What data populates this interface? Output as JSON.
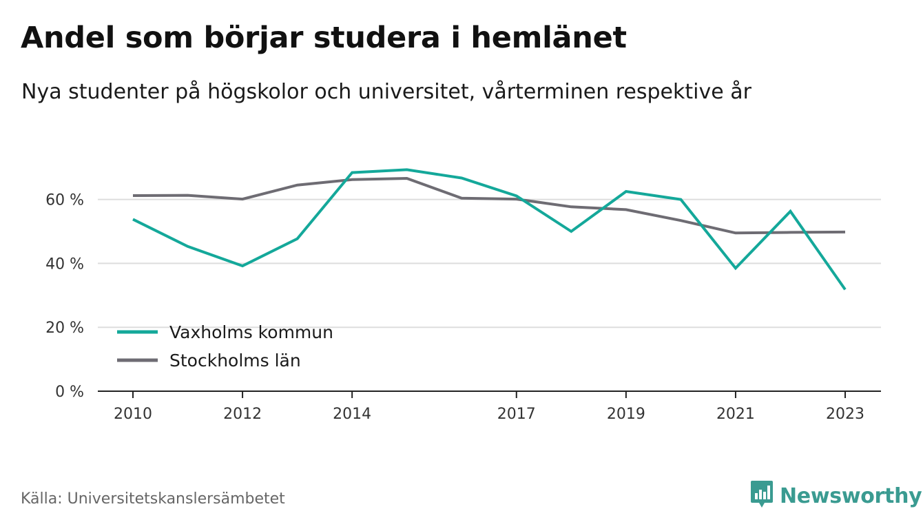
{
  "header": {
    "title": "Andel som börjar studera i hemlänet",
    "subtitle": "Nya studenter på högskolor och universitet, vårterminen respektive år"
  },
  "footer": {
    "source": "Källa: Universitetskanslersämbetet",
    "brand": "Newsworthy",
    "brand_icon": "bar-chart-speech-bubble-icon"
  },
  "colors": {
    "vaxholm": "#14a89a",
    "stockholm": "#6e6c73",
    "grid": "#dddddd",
    "axis": "#222222",
    "brand": "#3a9b91"
  },
  "chart_data": {
    "type": "line",
    "x": [
      2010,
      2011,
      2012,
      2013,
      2014,
      2015,
      2016,
      2017,
      2018,
      2019,
      2020,
      2021,
      2022,
      2023
    ],
    "x_tick_labels": [
      "2010",
      "2012",
      "2014",
      "2017",
      "2019",
      "2021",
      "2023"
    ],
    "y_ticks": [
      0,
      20,
      40,
      60
    ],
    "y_tick_labels": [
      "0 %",
      "20 %",
      "40 %",
      "60 %"
    ],
    "ylim": [
      0,
      75
    ],
    "grid": true,
    "legend_position": "bottom-left",
    "series": [
      {
        "name": "Vaxholms kommun",
        "color_key": "vaxholm",
        "values": [
          53.8,
          45.3,
          39.2,
          47.7,
          68.4,
          69.3,
          66.7,
          61.1,
          50.0,
          62.5,
          60.0,
          38.5,
          56.3,
          31.8
        ]
      },
      {
        "name": "Stockholms län",
        "color_key": "stockholm",
        "values": [
          61.2,
          61.3,
          60.1,
          64.5,
          66.2,
          66.6,
          60.4,
          60.1,
          57.7,
          56.8,
          53.4,
          49.5,
          49.7,
          49.8
        ]
      }
    ]
  }
}
